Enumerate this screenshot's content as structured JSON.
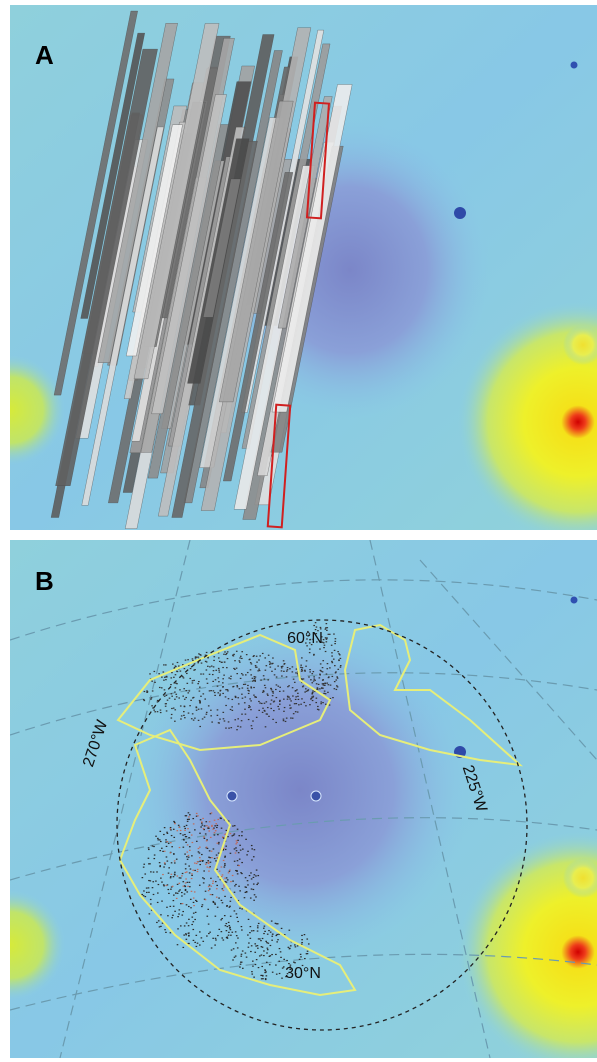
{
  "panels": [
    {
      "label": "A"
    },
    {
      "label": "B",
      "annotations": [
        "60°N",
        "270°W",
        "225°W",
        "30°N"
      ]
    }
  ]
}
